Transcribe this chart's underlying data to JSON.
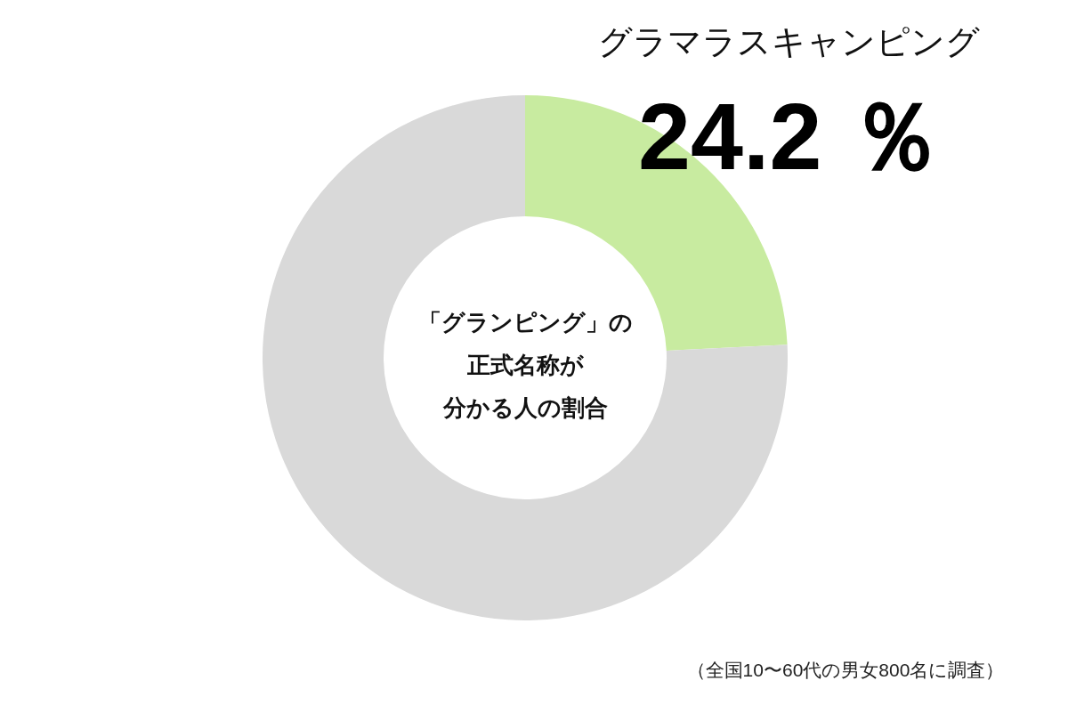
{
  "chart_data": {
    "type": "donut",
    "title": "「グランピング」の正式名称が分かる人の割合",
    "categories": [
      "グラマラスキャンピング",
      null
    ],
    "values": [
      24.2,
      75.8
    ],
    "colors": [
      "#c8eba0",
      "#d9d9d9"
    ],
    "value_labels": [
      "24.2 ％",
      null
    ],
    "annotations": [
      "（全国10〜60代の男女800名に調査）"
    ]
  }
}
